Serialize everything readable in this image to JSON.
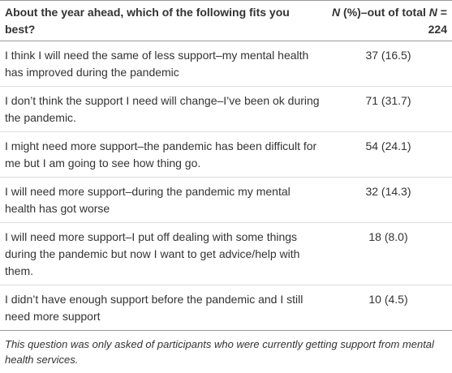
{
  "table": {
    "header": [
      "About the year ahead, which of the following fits you best?",
      [
        "N",
        " (%)–out of total ",
        "N",
        " = 224"
      ]
    ],
    "rows": [
      [
        "I think I will need the same of less support–my mental health has improved during the pandemic",
        "37 (16.5)"
      ],
      [
        "I don’t think the support I need will change–I’ve been ok during the pandemic.",
        "71 (31.7)"
      ],
      [
        "I might need more support–the pandemic has been difficult for me but I am going to see how thing go.",
        "54 (24.1)"
      ],
      [
        "I will need more support–during the pandemic my mental health has got worse",
        "32 (14.3)"
      ],
      [
        "I will need more support–I put off dealing with some things during the pandemic but now I want to get advice/help with them.",
        "18 (8.0)"
      ],
      [
        "I didn’t have enough support before the pandemic and I still need more support",
        "10 (4.5)"
      ]
    ],
    "footnote": "This question was only asked of participants who were currently getting support from mental health services."
  }
}
